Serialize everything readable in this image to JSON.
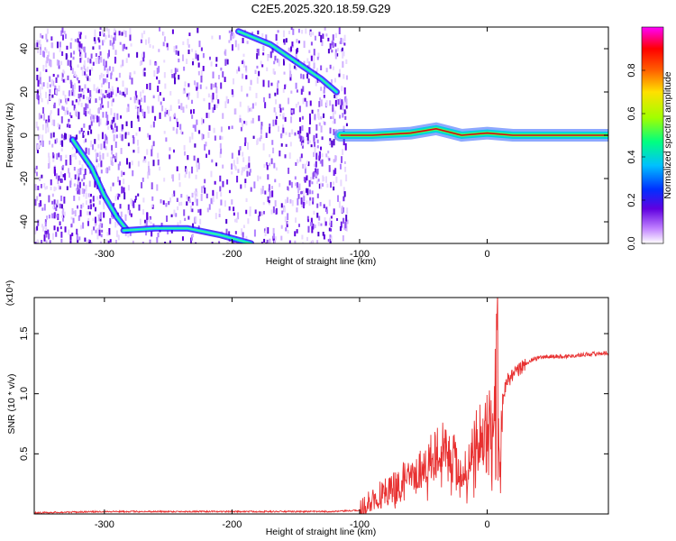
{
  "title": "C2E5.2025.320.18.59.G29",
  "chart_data": [
    {
      "type": "heatmap",
      "name": "spectrogram",
      "xlabel": "Height of straight line (km)",
      "ylabel": "Frequency (Hz)",
      "xlim": [
        -355,
        95
      ],
      "ylim": [
        -50,
        50
      ],
      "xticks": [
        -300,
        -200,
        -100,
        0
      ],
      "yticks": [
        -40,
        -20,
        0,
        20,
        40
      ],
      "colorbar": {
        "label": "Normalized spectral amplitude",
        "range": [
          0,
          1
        ],
        "ticks": [
          "0.0",
          "0.2",
          "0.4",
          "0.6",
          "0.8"
        ],
        "colors": [
          "#ffffff",
          "#c080ff",
          "#6000e0",
          "#0030ff",
          "#00c0ff",
          "#00ff80",
          "#a0ff00",
          "#ffe000",
          "#ff6000",
          "#ff0000",
          "#ff00ff"
        ]
      },
      "tracks": [
        {
          "name": "carrier",
          "points": [
            [
              -115,
              0
            ],
            [
              -90,
              0
            ],
            [
              -60,
              1
            ],
            [
              -40,
              3
            ],
            [
              -20,
              0
            ],
            [
              0,
              1
            ],
            [
              20,
              0
            ],
            [
              95,
              0
            ]
          ]
        },
        {
          "name": "descending-upper",
          "points": [
            [
              -195,
              48
            ],
            [
              -170,
              42
            ],
            [
              -150,
              34
            ],
            [
              -130,
              26
            ],
            [
              -118,
              20
            ]
          ]
        },
        {
          "name": "descending-lower",
          "points": [
            [
              -325,
              -2
            ],
            [
              -310,
              -15
            ],
            [
              -300,
              -28
            ],
            [
              -290,
              -38
            ],
            [
              -282,
              -44
            ]
          ]
        },
        {
          "name": "bottom-arc",
          "points": [
            [
              -285,
              -44
            ],
            [
              -260,
              -43
            ],
            [
              -235,
              -43
            ],
            [
              -210,
              -46
            ],
            [
              -185,
              -50
            ]
          ]
        }
      ]
    },
    {
      "type": "line",
      "name": "snr",
      "xlabel": "Height of straight line (km)",
      "ylabel": "SNR (10 * v/v)",
      "multiplier": "(x10⁴)",
      "xlim": [
        -355,
        95
      ],
      "ylim": [
        0,
        1.8
      ],
      "xticks": [
        -300,
        -200,
        -100,
        0
      ],
      "yticks": [
        "0.5",
        "1.0",
        "1.5"
      ],
      "color": "#e83030",
      "series": [
        {
          "x": [
            -355,
            -300,
            -250,
            -200,
            -150,
            -120,
            -100,
            -95,
            -90,
            -85,
            -80,
            -75,
            -70,
            -65,
            -60,
            -55,
            -50,
            -45,
            -40,
            -35,
            -30,
            -25,
            -20,
            -15,
            -10,
            -5,
            0,
            5,
            8,
            10,
            12,
            15,
            20,
            25,
            30,
            40,
            50,
            60,
            70,
            80,
            95
          ],
          "y": [
            0.01,
            0.02,
            0.02,
            0.02,
            0.02,
            0.02,
            0.03,
            0.06,
            0.12,
            0.15,
            0.18,
            0.25,
            0.2,
            0.3,
            0.25,
            0.35,
            0.4,
            0.45,
            0.5,
            0.55,
            0.45,
            0.5,
            0.3,
            0.45,
            0.6,
            0.7,
            0.75,
            0.8,
            1.7,
            0.35,
            0.95,
            1.1,
            1.15,
            1.2,
            1.25,
            1.3,
            1.31,
            1.31,
            1.32,
            1.33,
            1.34
          ]
        }
      ]
    }
  ]
}
